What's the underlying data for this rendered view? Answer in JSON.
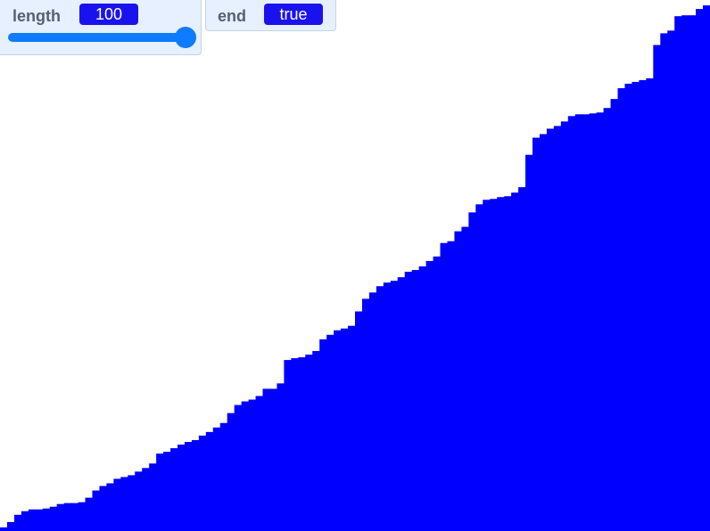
{
  "monitors": {
    "length": {
      "label": "length",
      "value": "100",
      "slider_level": 1.0
    },
    "end": {
      "label": "end",
      "value": "true"
    }
  },
  "colors": {
    "bar": "#0000ff",
    "monitor_bg": "#e6f0ff",
    "value_bg": "#1a12ee",
    "slider": "#0f7bff"
  },
  "chart_data": {
    "type": "bar",
    "values": [
      4,
      10,
      18,
      22,
      24,
      24,
      25,
      27,
      30,
      31,
      31,
      32,
      37,
      45,
      50,
      53,
      58,
      60,
      62,
      66,
      70,
      75,
      86,
      88,
      92,
      96,
      99,
      101,
      106,
      110,
      115,
      120,
      131,
      140,
      144,
      146,
      150,
      158,
      158,
      164,
      190,
      192,
      193,
      196,
      200,
      213,
      218,
      223,
      225,
      228,
      244,
      258,
      265,
      272,
      276,
      278,
      282,
      288,
      290,
      294,
      300,
      305,
      320,
      322,
      333,
      338,
      354,
      363,
      368,
      369,
      371,
      372,
      376,
      382,
      418,
      437,
      441,
      447,
      450,
      455,
      461,
      463,
      463,
      464,
      465,
      470,
      480,
      492,
      497,
      499,
      501,
      503,
      540,
      553,
      556,
      572,
      573,
      573,
      580,
      584
    ],
    "ylim": [
      0,
      590
    ]
  }
}
